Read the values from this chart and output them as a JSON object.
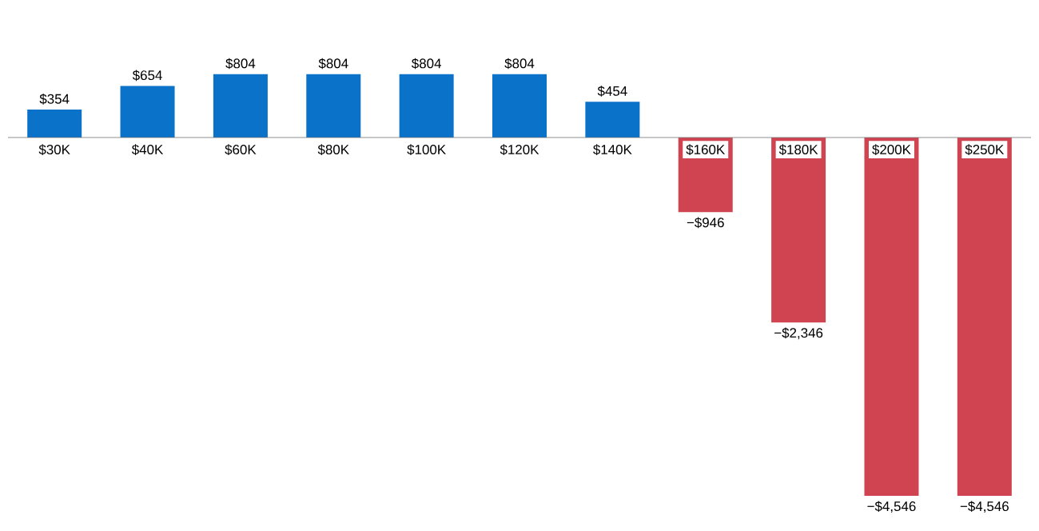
{
  "chart_data": {
    "type": "bar",
    "categories": [
      "$30K",
      "$40K",
      "$60K",
      "$80K",
      "$100K",
      "$120K",
      "$140K",
      "$160K",
      "$180K",
      "$200K",
      "$250K"
    ],
    "values": [
      354,
      654,
      804,
      804,
      804,
      804,
      454,
      -946,
      -2346,
      -4546,
      -4546
    ],
    "value_labels": [
      "$354",
      "$654",
      "$804",
      "$804",
      "$804",
      "$804",
      "$454",
      "−$946",
      "−$2,346",
      "−$4,546",
      "−$4,546"
    ],
    "colors": [
      "#0a72c8",
      "#0a72c8",
      "#0a72c8",
      "#0a72c8",
      "#0a72c8",
      "#0a72c8",
      "#0a72c8",
      "#d04452",
      "#d04452",
      "#d04452",
      "#d04452"
    ],
    "tick_labels": "x"
  }
}
